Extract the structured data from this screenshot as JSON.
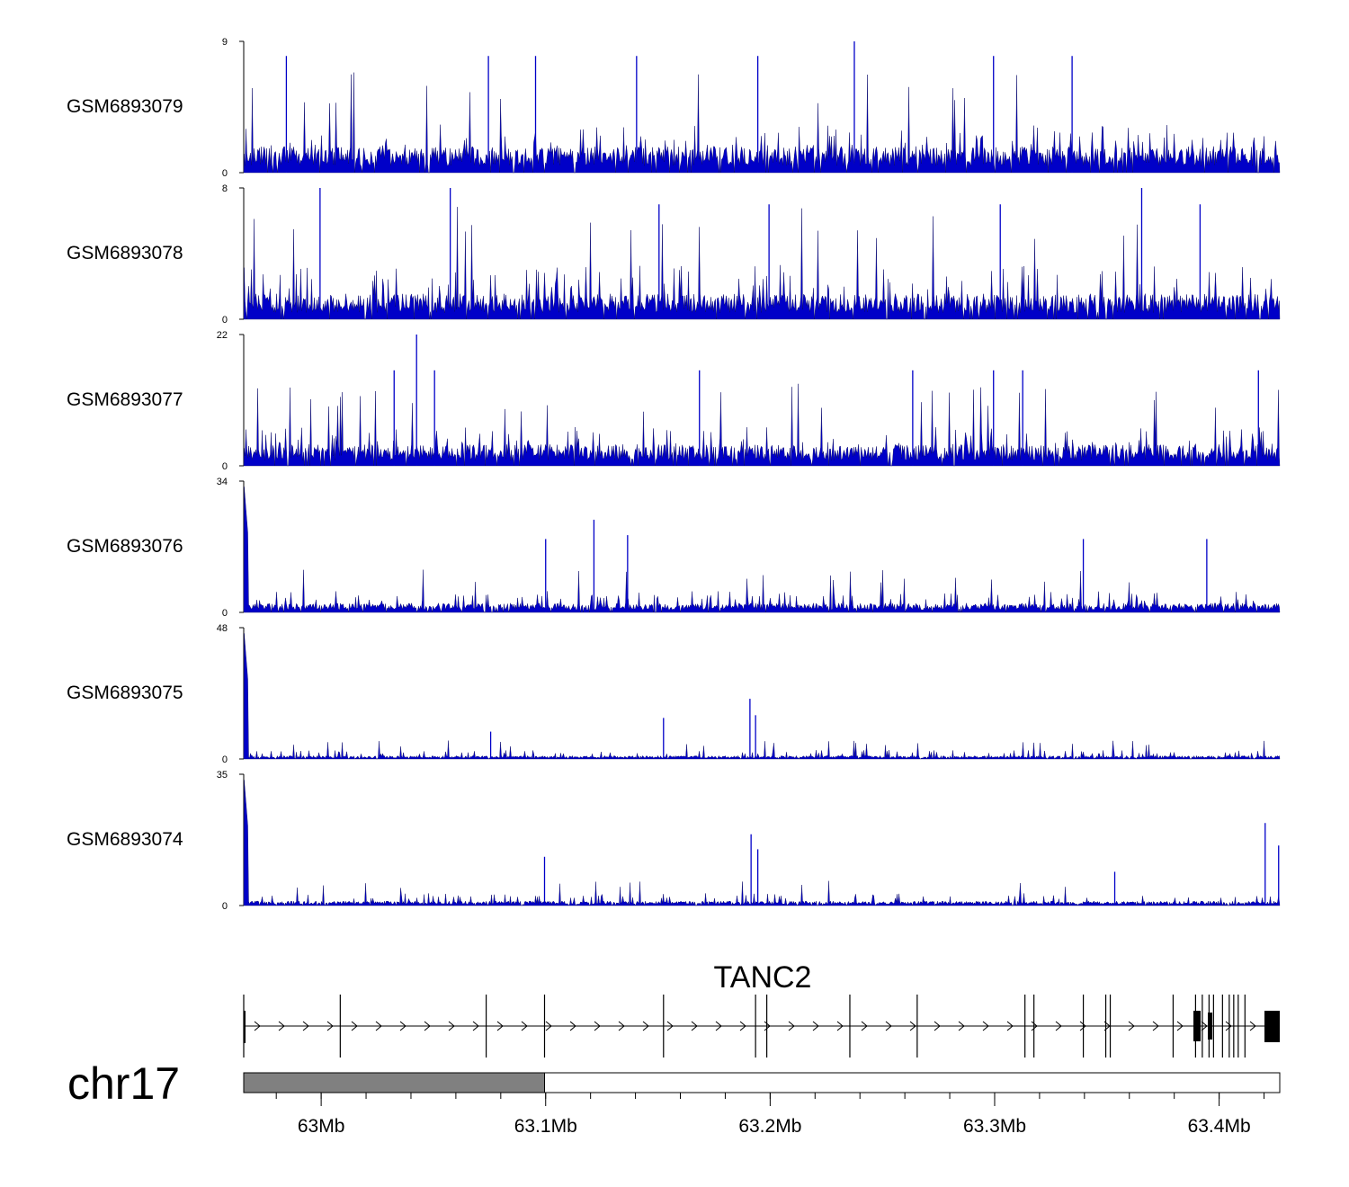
{
  "chart_data": {
    "type": "genome-coverage-tracks",
    "chromosome": "chr17",
    "region_mb": [
      62.9655,
      63.427
    ],
    "tracks": [
      {
        "name": "GSM6893079",
        "ymax": 9,
        "baseline": 1.5,
        "typical_peak": 3,
        "start_spike": 0,
        "spikes": [
          [
            62.9845,
            8
          ],
          [
            63.0745,
            8
          ],
          [
            63.0955,
            8
          ],
          [
            63.1405,
            8
          ],
          [
            63.1945,
            8
          ],
          [
            63.2375,
            9
          ],
          [
            63.2995,
            8
          ],
          [
            63.3345,
            8
          ]
        ]
      },
      {
        "name": "GSM6893078",
        "ymax": 8,
        "baseline": 1.3,
        "typical_peak": 3,
        "start_spike": 0,
        "spikes": [
          [
            62.9995,
            8
          ],
          [
            63.0575,
            8
          ],
          [
            63.1505,
            7
          ],
          [
            63.1995,
            7
          ],
          [
            63.3025,
            7
          ],
          [
            63.3655,
            8
          ],
          [
            63.3915,
            7
          ]
        ]
      },
      {
        "name": "GSM6893077",
        "ymax": 22,
        "baseline": 3,
        "typical_peak": 6,
        "start_spike": 0,
        "spikes": [
          [
            63.0325,
            16
          ],
          [
            63.0425,
            22
          ],
          [
            63.0505,
            16
          ],
          [
            63.1685,
            16
          ],
          [
            63.2635,
            16
          ],
          [
            63.2995,
            16
          ],
          [
            63.3125,
            16
          ],
          [
            63.4175,
            16
          ]
        ]
      },
      {
        "name": "GSM6893076",
        "ymax": 34,
        "baseline": 2,
        "typical_peak": 5,
        "start_spike": 34,
        "spikes": [
          [
            63.1,
            19
          ],
          [
            63.1215,
            24
          ],
          [
            63.1365,
            20
          ],
          [
            63.3395,
            19
          ],
          [
            63.3945,
            19
          ]
        ]
      },
      {
        "name": "GSM6893075",
        "ymax": 48,
        "baseline": 1,
        "typical_peak": 3,
        "start_spike": 48,
        "spikes": [
          [
            63.0755,
            10
          ],
          [
            63.1525,
            15
          ],
          [
            63.191,
            22
          ],
          [
            63.1935,
            16
          ]
        ]
      },
      {
        "name": "GSM6893074",
        "ymax": 35,
        "baseline": 1,
        "typical_peak": 3,
        "start_spike": 35,
        "spikes": [
          [
            63.0995,
            13
          ],
          [
            63.1915,
            19
          ],
          [
            63.1945,
            15
          ],
          [
            63.3535,
            9
          ],
          [
            63.4205,
            22
          ],
          [
            63.4265,
            16
          ]
        ]
      }
    ],
    "gene": {
      "name": "TANC2",
      "strand": "+",
      "exons_mb": [
        62.9655,
        63.0085,
        63.0735,
        63.0995,
        63.1525,
        63.1935,
        63.1985,
        63.2355,
        63.2655,
        63.3135,
        63.3175,
        63.3395,
        63.3495,
        63.3515,
        63.3795,
        63.3895,
        63.3925,
        63.3955,
        63.3975,
        63.4015,
        63.4045,
        63.4065,
        63.4085,
        63.4115
      ]
    },
    "axis": {
      "ticks_mb": [
        63.0,
        63.1,
        63.2,
        63.3,
        63.4
      ],
      "tick_labels": [
        "63Mb",
        "63.1Mb",
        "63.2Mb",
        "63.3Mb",
        "63.4Mb"
      ],
      "minor_step_mb": 0.02,
      "highlight_mb": [
        62.9655,
        63.0995
      ]
    },
    "colors": {
      "signal": "#0000c8",
      "highlight": "#808080",
      "axis": "#000000"
    }
  }
}
